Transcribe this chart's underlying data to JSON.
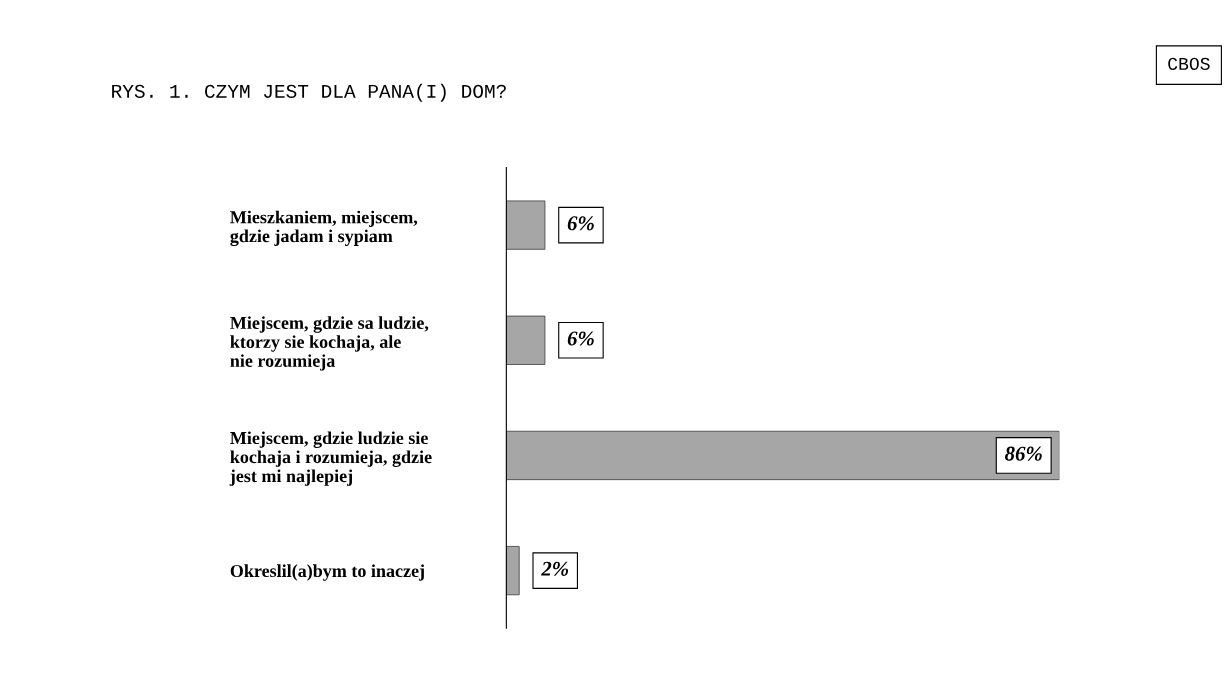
{
  "chart_data": {
    "type": "bar",
    "orientation": "horizontal",
    "value_labels": [
      "6%",
      "6%",
      "86%",
      "2%"
    ],
    "title": "RYS. 1. CZYM JEST DLA PANA(I) DOM?",
    "categories": [
      "Mieszkaniem, miejscem, gdzie jadam i sypiam",
      "Miejscem, gdzie sa ludzie, ktorzy sie kochaja, ale nie rozumieja",
      "Miejscem, gdzie ludzie sie kochaja i rozumieja, gdzie jest mi najlepiej",
      "Okreslil(a)bym to inaczej"
    ],
    "values": [
      6,
      6,
      86,
      2
    ],
    "color": "#a6a6a6",
    "annotations": [
      "CBOS"
    ],
    "legend": false,
    "grid": false
  }
}
